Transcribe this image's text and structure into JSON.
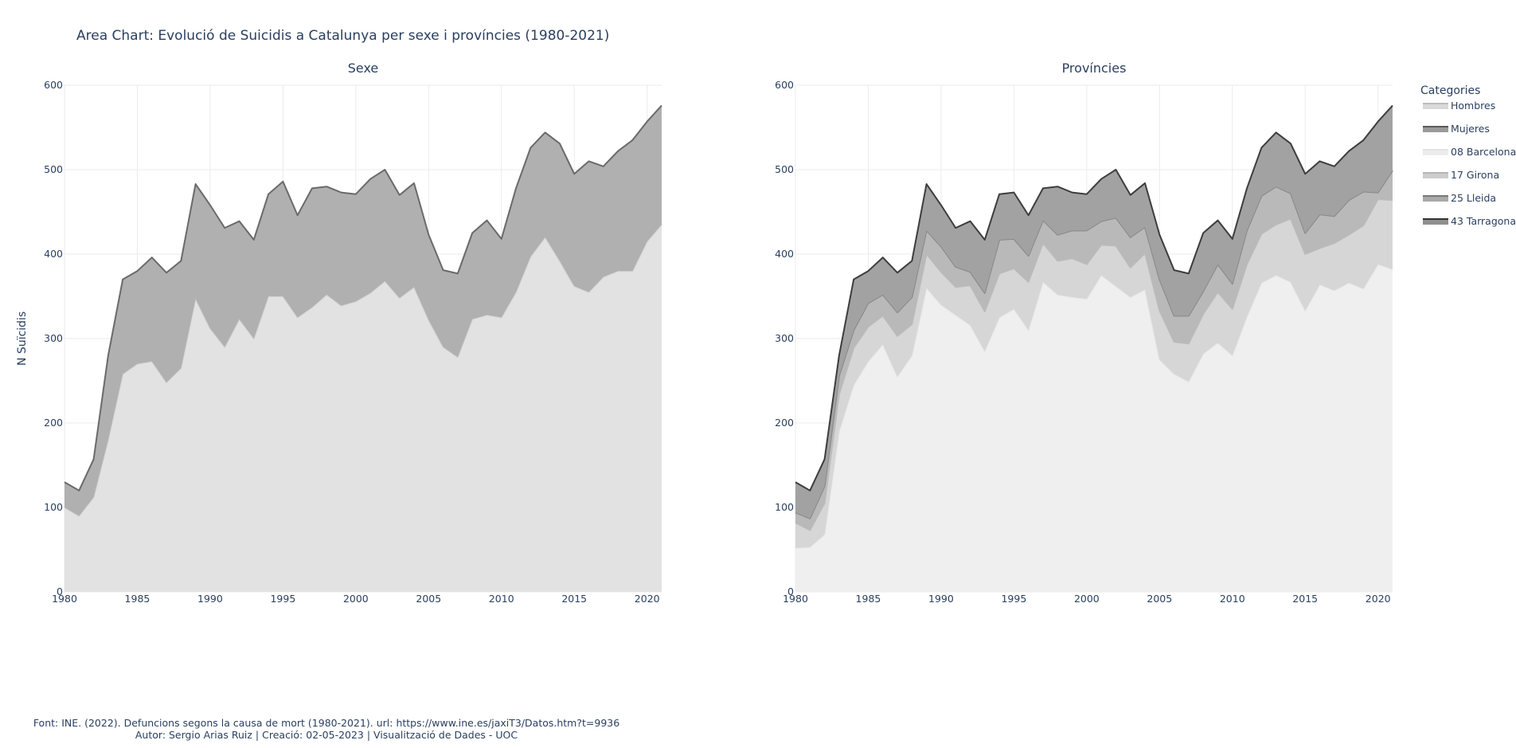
{
  "title": "Area Chart: Evolució de Suicidis a Catalunya per sexe i províncies (1980-2021)",
  "footer": {
    "line1": "Font: INE. (2022). Defuncions segons la causa de mort (1980-2021). url: https://www.ine.es/jaxiT3/Datos.htm?t=9936",
    "line2": "Autor: Sergio Arias Ruiz | Creació: 02-05-2023 | Visualització de Dades - UOC"
  },
  "legend": {
    "title": "Categories",
    "entries": [
      {
        "name": "Hombres",
        "fill": "#d9d9d9",
        "line": "#bdbdbd"
      },
      {
        "name": "Mujeres",
        "fill": "#9a9a9a",
        "line": "#5a5a5a"
      },
      {
        "name": "08 Barcelona",
        "fill": "#ececec",
        "line": "#e3e3e3"
      },
      {
        "name": "17 Girona",
        "fill": "#cdcdcd",
        "line": "#b5b5b5"
      },
      {
        "name": "25 Lleida",
        "fill": "#a9a9a9",
        "line": "#777777"
      },
      {
        "name": "43 Tarragona",
        "fill": "#8f8f8f",
        "line": "#333333"
      }
    ]
  },
  "chart_data": [
    {
      "type": "area",
      "title": "Sexe",
      "ylabel": "N Suïcidis",
      "xlabel": "",
      "xlim": [
        1980,
        2021
      ],
      "ylim": [
        0,
        600
      ],
      "xticks": [
        1980,
        1985,
        1990,
        1995,
        2000,
        2005,
        2010,
        2015,
        2020
      ],
      "yticks": [
        0,
        100,
        200,
        300,
        400,
        500,
        600
      ],
      "grid": true,
      "stacked": true,
      "x": [
        1980,
        1981,
        1982,
        1983,
        1984,
        1985,
        1986,
        1987,
        1988,
        1989,
        1990,
        1991,
        1992,
        1993,
        1994,
        1995,
        1996,
        1997,
        1998,
        1999,
        2000,
        2001,
        2002,
        2003,
        2004,
        2005,
        2006,
        2007,
        2008,
        2009,
        2010,
        2011,
        2012,
        2013,
        2014,
        2015,
        2016,
        2017,
        2018,
        2019,
        2020,
        2021
      ],
      "series": [
        {
          "name": "Hombres",
          "fill": "#e2e2e2",
          "line": "#d2d2d2",
          "values": [
            100,
            90,
            112,
            180,
            258,
            270,
            273,
            248,
            265,
            347,
            312,
            290,
            323,
            300,
            350,
            350,
            325,
            337,
            352,
            339,
            344,
            354,
            368,
            348,
            361,
            322,
            290,
            278,
            323,
            328,
            325,
            355,
            397,
            420,
            392,
            362,
            355,
            373,
            380,
            380,
            415,
            435
          ]
        },
        {
          "name": "Mujeres",
          "fill": "#b0b0b0",
          "line": "#6a6a6a",
          "values": [
            30,
            30,
            45,
            100,
            112,
            110,
            123,
            130,
            127,
            136,
            146,
            141,
            116,
            117,
            121,
            136,
            121,
            141,
            128,
            134,
            127,
            135,
            132,
            122,
            123,
            101,
            91,
            99,
            102,
            112,
            93,
            123,
            129,
            124,
            139,
            133,
            155,
            131,
            142,
            155,
            142,
            141
          ]
        }
      ]
    },
    {
      "type": "area",
      "title": "Províncies",
      "xlabel": "",
      "xlim": [
        1980,
        2021
      ],
      "ylim": [
        0,
        600
      ],
      "xticks": [
        1980,
        1985,
        1990,
        1995,
        2000,
        2005,
        2010,
        2015,
        2020
      ],
      "yticks": [
        0,
        100,
        200,
        300,
        400,
        500,
        600
      ],
      "grid": true,
      "stacked": true,
      "x": [
        1980,
        1981,
        1982,
        1983,
        1984,
        1985,
        1986,
        1987,
        1988,
        1989,
        1990,
        1991,
        1992,
        1993,
        1994,
        1995,
        1996,
        1997,
        1998,
        1999,
        2000,
        2001,
        2002,
        2003,
        2004,
        2005,
        2006,
        2007,
        2008,
        2009,
        2010,
        2011,
        2012,
        2013,
        2014,
        2015,
        2016,
        2017,
        2018,
        2019,
        2020,
        2021
      ],
      "series": [
        {
          "name": "08 Barcelona",
          "fill": "#efefef",
          "line": "#e6e6e6",
          "values": [
            52,
            53,
            68,
            190,
            245,
            273,
            293,
            255,
            280,
            360,
            340,
            328,
            316,
            285,
            325,
            335,
            310,
            367,
            352,
            349,
            347,
            375,
            362,
            349,
            358,
            275,
            258,
            249,
            282,
            295,
            280,
            326,
            366,
            375,
            367,
            333,
            364,
            357,
            366,
            359,
            388,
            382
          ]
        },
        {
          "name": "17 Girona",
          "fill": "#d6d6d6",
          "line": "#bdbdbd",
          "values": [
            30,
            20,
            37,
            44,
            44,
            41,
            34,
            48,
            37,
            40,
            39,
            33,
            47,
            47,
            52,
            48,
            57,
            46,
            40,
            46,
            41,
            36,
            48,
            35,
            43,
            58,
            38,
            45,
            47,
            60,
            55,
            62,
            58,
            60,
            75,
            67,
            43,
            56,
            57,
            75,
            77,
            82
          ]
        },
        {
          "name": "25 Lleida",
          "fill": "#b9b9b9",
          "line": "#888888",
          "values": [
            12,
            14,
            20,
            22,
            21,
            28,
            25,
            28,
            32,
            28,
            30,
            24,
            16,
            22,
            40,
            35,
            31,
            27,
            31,
            33,
            40,
            28,
            33,
            36,
            31,
            37,
            31,
            33,
            27,
            33,
            30,
            40,
            45,
            45,
            30,
            25,
            40,
            32,
            41,
            40,
            8,
            35
          ]
        },
        {
          "name": "43 Tarragona",
          "fill": "#a2a2a2",
          "line": "#3d3d3d",
          "values": [
            36,
            33,
            32,
            24,
            60,
            38,
            44,
            47,
            43,
            55,
            49,
            46,
            60,
            63,
            54,
            55,
            48,
            38,
            57,
            45,
            43,
            50,
            57,
            50,
            52,
            53,
            54,
            50,
            69,
            52,
            53,
            50,
            57,
            64,
            59,
            70,
            63,
            59,
            58,
            61,
            84,
            77
          ]
        }
      ]
    }
  ]
}
